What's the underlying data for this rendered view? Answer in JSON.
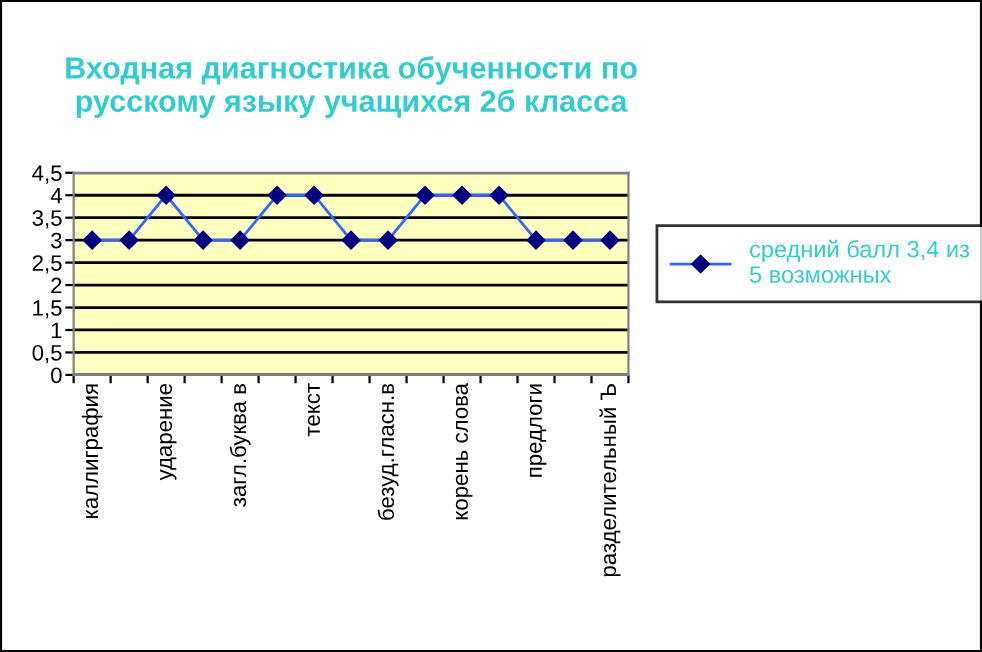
{
  "chart_data": {
    "type": "line",
    "title": "Входная диагностика обученности по\nрусскому языку учащихся 2б класса",
    "categories": [
      "каллиграфия",
      null,
      "ударение",
      null,
      "загл.буква в",
      null,
      "текст",
      null,
      "безуд.гласн.в",
      null,
      "корень слова",
      null,
      "предлоги",
      null,
      "разделительный Ъ"
    ],
    "series": [
      {
        "name": "средний балл 3,4 из\n5 возможных",
        "color": "#3366ff",
        "values": [
          3,
          3,
          4,
          3,
          3,
          4,
          4,
          3,
          3,
          4,
          4,
          4,
          3,
          3,
          3
        ]
      }
    ],
    "ylim": [
      0,
      4.5
    ],
    "yticks": [
      0,
      {
        "value": 0.5,
        "label": "0,5"
      },
      1,
      {
        "value": 1.5,
        "label": "1,5"
      },
      2,
      {
        "value": 2.5,
        "label": "2,5"
      },
      3,
      {
        "value": 3.5,
        "label": "3,5"
      },
      4,
      {
        "value": 4.5,
        "label": "4,5"
      }
    ],
    "grid": "y",
    "legend": "right",
    "marker": "diamond",
    "line_style": "solid"
  }
}
